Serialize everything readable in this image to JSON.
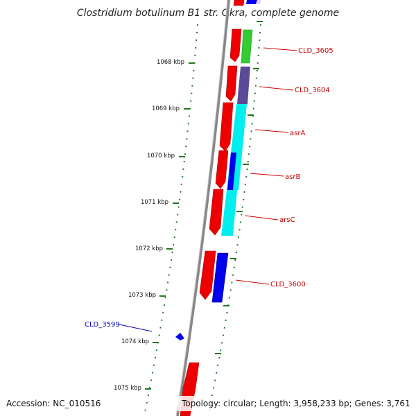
{
  "title": "Clostridium botulinum B1 str. Okra, complete genome",
  "footer": {
    "accession": "Accession: NC_010516",
    "topology": "Topology: circular; Length: 3,958,233 bp; Genes: 3,761"
  },
  "ruler_labels": [
    "1068 kbp",
    "1069 kbp",
    "1070 kbp",
    "1071 kbp",
    "1072 kbp",
    "1073 kbp",
    "1074 kbp",
    "1075 kbp"
  ],
  "gene_labels": [
    {
      "text": "CLD_3605",
      "color": "#cc0000"
    },
    {
      "text": "CLD_3604",
      "color": "#cc0000"
    },
    {
      "text": "asrA",
      "color": "#cc0000"
    },
    {
      "text": "asrB",
      "color": "#cc0000"
    },
    {
      "text": "arsC",
      "color": "#cc0000"
    },
    {
      "text": "CLD_3600",
      "color": "#cc0000"
    },
    {
      "text": "CLD_3599",
      "color": "#0000bb"
    }
  ],
  "colors": {
    "cds": "#ee0000",
    "green": "#33cc33",
    "purple": "#5b4a99",
    "cyan": "#00eeee",
    "blue": "#0000ee",
    "ruler": "#227722",
    "backbone": "#888888"
  }
}
